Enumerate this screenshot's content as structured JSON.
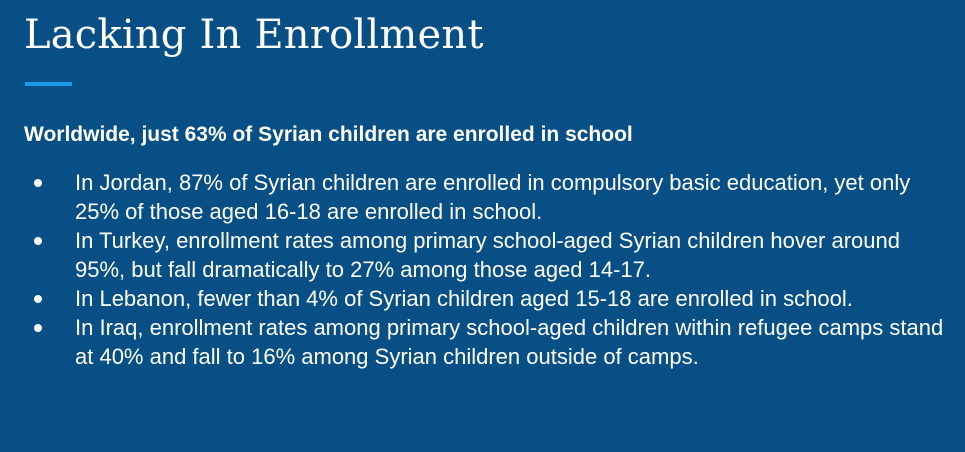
{
  "slide": {
    "title": "Lacking In Enrollment",
    "accent_color": "#1a9be6",
    "background_color": "#074f84",
    "subtitle": "Worldwide, just 63% of Syrian children are enrolled in school",
    "bullets": [
      "In Jordan, 87% of Syrian children are enrolled in compulsory basic education, yet only 25% of those aged 16-18 are enrolled in school.",
      "In Turkey, enrollment rates among primary school-aged Syrian children hover around 95%, but fall dramatically to 27% among those aged 14-17.",
      "In Lebanon, fewer than 4% of Syrian children aged 15-18 are enrolled in school.",
      "In Iraq, enrollment rates among primary school-aged children within refugee camps stand at 40% and fall to 16% among Syrian children outside of camps."
    ]
  }
}
